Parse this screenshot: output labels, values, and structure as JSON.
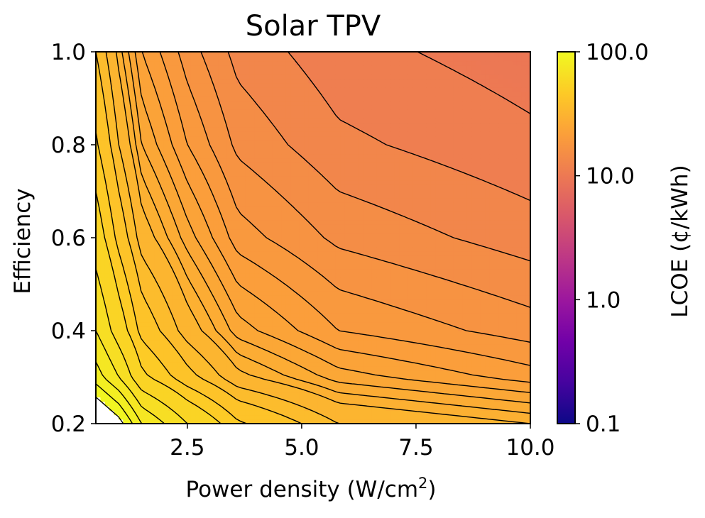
{
  "chart_data": {
    "type": "heatmap",
    "subtype": "filled-contour",
    "title": "Solar TPV",
    "xlabel": "Power density (W/cm",
    "xlabel_superscript": "2",
    "xlabel_suffix": ")",
    "ylabel": "Efficiency",
    "xlim": [
      0.5,
      10.0
    ],
    "ylim": [
      0.2,
      1.0
    ],
    "xticks": [
      2.5,
      5.0,
      7.5,
      10.0
    ],
    "xtick_labels": [
      "2.5",
      "5.0",
      "7.5",
      "10.0"
    ],
    "yticks": [
      0.2,
      0.4,
      0.6,
      0.8,
      1.0
    ],
    "ytick_labels": [
      "0.2",
      "0.4",
      "0.6",
      "0.8",
      "1.0"
    ],
    "x_grid": [
      0.5,
      1.0,
      1.5,
      2.5,
      3.6,
      5.8,
      10.0
    ],
    "y_grid": [
      0.2,
      0.3,
      0.4,
      0.6,
      0.8,
      1.0
    ],
    "z_values": [
      [
        120,
        105,
        80,
        60,
        45,
        34,
        30
      ],
      [
        85,
        70,
        52,
        40,
        31,
        25,
        21
      ],
      [
        70,
        55,
        42,
        32,
        25,
        20,
        17
      ],
      [
        55,
        42,
        32,
        25,
        19,
        15.5,
        13
      ],
      [
        45,
        34,
        26,
        20,
        15.5,
        12.5,
        10.5
      ],
      [
        38,
        29,
        22,
        17,
        13.3,
        10.7,
        9
      ]
    ],
    "contour_levels": [
      10,
      12,
      14,
      16,
      18,
      20,
      22,
      24,
      26,
      28,
      30,
      34,
      38,
      44,
      50,
      60,
      70,
      80,
      90,
      100
    ],
    "colorbar": {
      "label": "LCOE (¢/kWh)",
      "scale": "log",
      "range": [
        0.1,
        100.0
      ],
      "ticks": [
        0.1,
        1.0,
        10.0,
        100.0
      ],
      "tick_labels": [
        "0.1",
        "1.0",
        "10.0",
        "100.0"
      ],
      "colormap": "plasma"
    },
    "grid": false,
    "legend": "none"
  },
  "colors": {
    "frame": "#000000",
    "contour_line": "#000000",
    "above_range": "#ffffff",
    "colormap_stops": [
      "#0d0887",
      "#46039f",
      "#7201a8",
      "#9c179e",
      "#bd3786",
      "#d8576b",
      "#ed7953",
      "#fb9f3a",
      "#fdca26",
      "#f0f921"
    ]
  }
}
